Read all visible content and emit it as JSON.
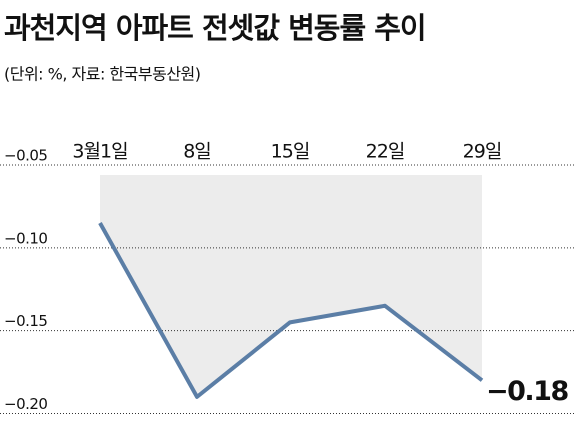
{
  "chart_data": {
    "type": "line",
    "title": "과천지역 아파트 전셋값 변동률 추이",
    "subtitle": "(단위: %, 자료: 한국부동산원)",
    "categories": [
      "3월1일",
      "8일",
      "15일",
      "22일",
      "29일"
    ],
    "values": [
      -0.085,
      -0.19,
      -0.145,
      -0.135,
      -0.18
    ],
    "value_labels": [
      null,
      null,
      null,
      null,
      "−0.18"
    ],
    "color": "#5b7ea6",
    "area_color": "#ececec",
    "ylim": [
      -0.21,
      -0.05
    ],
    "yticks": [
      {
        "value": -0.05,
        "label": "−0.05"
      },
      {
        "value": -0.1,
        "label": "−0.10"
      },
      {
        "value": -0.15,
        "label": "−0.15"
      },
      {
        "value": -0.2,
        "label": "−0.20"
      }
    ],
    "grid": true
  }
}
